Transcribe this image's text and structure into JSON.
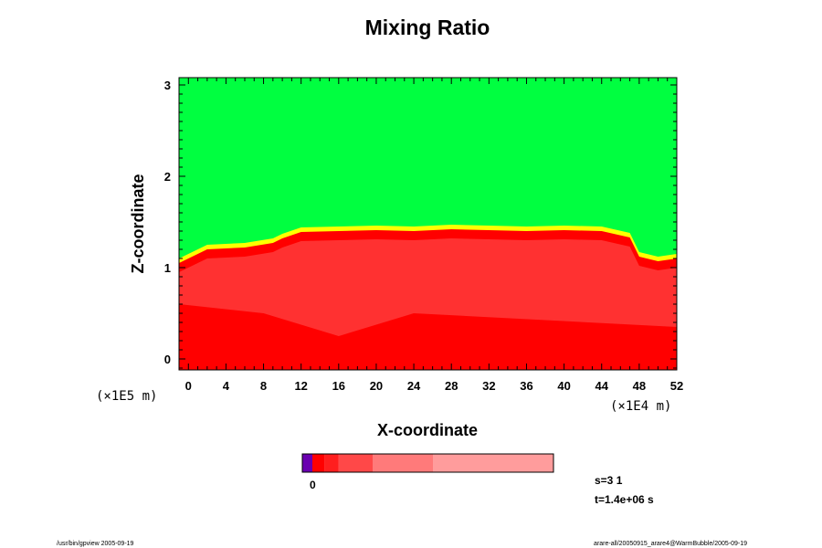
{
  "chart_data": {
    "type": "heatmap",
    "title": "Mixing Ratio",
    "xlabel": "X-coordinate",
    "ylabel": "Z-coordinate",
    "x_unit": "(×1E4 m)",
    "z_unit": "(×1E5 m)",
    "xlim": [
      -1,
      52
    ],
    "zlim": [
      -0.12,
      3.08
    ],
    "x_ticks": [
      0,
      4,
      8,
      12,
      16,
      20,
      24,
      28,
      32,
      36,
      40,
      44,
      48,
      52
    ],
    "x_tick_labels": [
      "0",
      "4",
      "8",
      "12",
      "16",
      "20",
      "24",
      "28",
      "32",
      "36",
      "40",
      "44",
      "48",
      "52"
    ],
    "z_ticks": [
      0,
      1,
      2,
      3
    ],
    "z_tick_labels": [
      "0",
      "1",
      "2",
      "3"
    ],
    "interface_height": {
      "x": [
        -1,
        0,
        2,
        6,
        9,
        10,
        12,
        16,
        20,
        24,
        28,
        32,
        36,
        40,
        44,
        47,
        48,
        50,
        52
      ],
      "z": [
        1.05,
        1.1,
        1.2,
        1.22,
        1.27,
        1.32,
        1.39,
        1.4,
        1.41,
        1.4,
        1.42,
        1.41,
        1.4,
        1.41,
        1.4,
        1.33,
        1.12,
        1.07,
        1.1
      ]
    },
    "colors": {
      "upper": "#00ff40",
      "transition": "#ffff00",
      "lower": "#ff0000",
      "lower_light": "#ff3a3a"
    },
    "colorbar": {
      "label": "0",
      "segments": [
        {
          "color": "#6a00b0",
          "from": 0,
          "to": 0.04
        },
        {
          "color": "#ff0000",
          "from": 0.04,
          "to": 0.09
        },
        {
          "color": "#ff1e1e",
          "from": 0.09,
          "to": 0.145
        },
        {
          "color": "#ff4848",
          "from": 0.145,
          "to": 0.28
        },
        {
          "color": "#ff7a7a",
          "from": 0.28,
          "to": 0.52
        },
        {
          "color": "#ff9c9c",
          "from": 0.52,
          "to": 1.0
        }
      ]
    },
    "annotations": {
      "s": "s=3 1",
      "t": "t=1.4e+06 s"
    }
  },
  "footer": {
    "left": "/usr/bin/gpview 2005-09-19",
    "right": "arare-all/20050915_arare4@WarmBubble/2005-09-19"
  }
}
